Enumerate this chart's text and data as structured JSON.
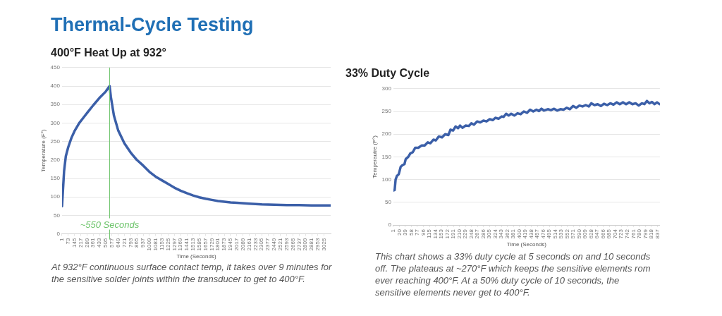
{
  "chart_data": [
    {
      "type": "line",
      "title": "Thermal-Cycle Testing",
      "subtitle": "400°F Heat Up at 932°",
      "xlabel": "Time (Seconds)",
      "ylabel": "Temperature (F°)",
      "grid": "y",
      "x": [
        1,
        10,
        25,
        45,
        73,
        110,
        145,
        200,
        250,
        300,
        361,
        433,
        505,
        550,
        565,
        600,
        649,
        721,
        793,
        865,
        937,
        1009,
        1081,
        1153,
        1225,
        1297,
        1369,
        1441,
        1513,
        1585,
        1657,
        1729,
        1801,
        1873,
        1945,
        2017,
        2161,
        2305,
        2449,
        2593,
        2737,
        2881,
        3025,
        3097
      ],
      "series": [
        {
          "color": "#3b5fa8",
          "values": [
            75,
            110,
            170,
            210,
            235,
            260,
            278,
            300,
            315,
            330,
            348,
            368,
            385,
            400,
            370,
            320,
            280,
            245,
            220,
            200,
            185,
            168,
            155,
            145,
            135,
            125,
            117,
            110,
            104,
            99,
            95,
            92,
            89,
            87,
            85,
            84,
            82,
            80,
            79,
            78,
            78,
            77,
            77,
            77
          ]
        }
      ],
      "xlim": [
        1,
        3100
      ],
      "xticks": [
        1,
        73,
        145,
        217,
        289,
        361,
        433,
        505,
        577,
        649,
        721,
        793,
        865,
        937,
        1009,
        1081,
        1153,
        1225,
        1297,
        1369,
        1441,
        1513,
        1585,
        1657,
        1729,
        1801,
        1873,
        1945,
        2017,
        2089,
        2161,
        2233,
        2305,
        2377,
        2449,
        2521,
        2593,
        2665,
        2737,
        2809,
        2881,
        2953,
        3025
      ],
      "ylim": [
        0,
        450
      ],
      "yticks": [
        0,
        50,
        100,
        150,
        200,
        250,
        300,
        350,
        400,
        450
      ],
      "ref_lines": [
        {
          "axis": "x",
          "value": 550,
          "label": "~550 Seconds",
          "color": "#6cc46a"
        }
      ],
      "annotations": [
        "At 932°F continuous surface contact temp, it takes over 9 minutes for the sensitive solder joints within the transducer to get to 400°F."
      ]
    },
    {
      "type": "line",
      "title": "33% Duty Cycle",
      "xlabel": "Time (Seconds)",
      "ylabel": "Temperautre (F°)",
      "grid": "y",
      "x": [
        1,
        5,
        8,
        12,
        18,
        24,
        30,
        36,
        40,
        48,
        55,
        62,
        70,
        80,
        90,
        100,
        110,
        118,
        128,
        135,
        145,
        155,
        165,
        175,
        182,
        190,
        198,
        206,
        212,
        220,
        230,
        240,
        248,
        256,
        266,
        276,
        286,
        296,
        306,
        316,
        324,
        334,
        344,
        350,
        358,
        366,
        374,
        384,
        394,
        404,
        414,
        424,
        434,
        444,
        454,
        462,
        470,
        478,
        490,
        500,
        510,
        520,
        530,
        540,
        550,
        560,
        570,
        580,
        590,
        600,
        610,
        620,
        628,
        638,
        648,
        658,
        668,
        678,
        688,
        698,
        708,
        718,
        728,
        738,
        748,
        758,
        768,
        778,
        788,
        796,
        804,
        812,
        820,
        828,
        836,
        844
      ],
      "series": [
        {
          "color": "#3b5fa8",
          "values": [
            76,
            77,
            100,
            108,
            112,
            128,
            132,
            134,
            145,
            150,
            158,
            160,
            170,
            170,
            175,
            175,
            182,
            180,
            188,
            186,
            195,
            193,
            200,
            198,
            210,
            208,
            217,
            213,
            219,
            214,
            219,
            218,
            224,
            221,
            228,
            226,
            230,
            228,
            233,
            231,
            236,
            234,
            239,
            238,
            245,
            241,
            245,
            241,
            246,
            244,
            250,
            247,
            254,
            250,
            254,
            251,
            256,
            252,
            255,
            253,
            256,
            252,
            255,
            254,
            258,
            255,
            262,
            258,
            263,
            261,
            264,
            261,
            268,
            264,
            266,
            262,
            267,
            264,
            268,
            265,
            270,
            266,
            270,
            266,
            270,
            266,
            268,
            263,
            268,
            266,
            273,
            268,
            271,
            266,
            270,
            266
          ]
        }
      ],
      "xlim": [
        1,
        845
      ],
      "xticks": [
        1,
        20,
        39,
        58,
        77,
        96,
        115,
        134,
        153,
        172,
        191,
        210,
        229,
        248,
        267,
        286,
        305,
        324,
        343,
        362,
        381,
        400,
        419,
        438,
        457,
        476,
        495,
        514,
        533,
        552,
        571,
        590,
        609,
        628,
        647,
        666,
        685,
        704,
        723,
        742,
        761,
        780,
        799,
        818,
        837
      ],
      "ylim": [
        0,
        300
      ],
      "yticks": [
        0,
        50,
        100,
        150,
        200,
        250,
        300
      ],
      "annotations": [
        "This chart shows a 33% duty cycle at 5 seconds on and 10 seconds off. The plateaus at ~270°F which keeps the sensitive elements rom ever reaching 400°F. At a 50% duty cycle of 10 seconds, the sensitive elements never get to 400°F."
      ]
    }
  ]
}
